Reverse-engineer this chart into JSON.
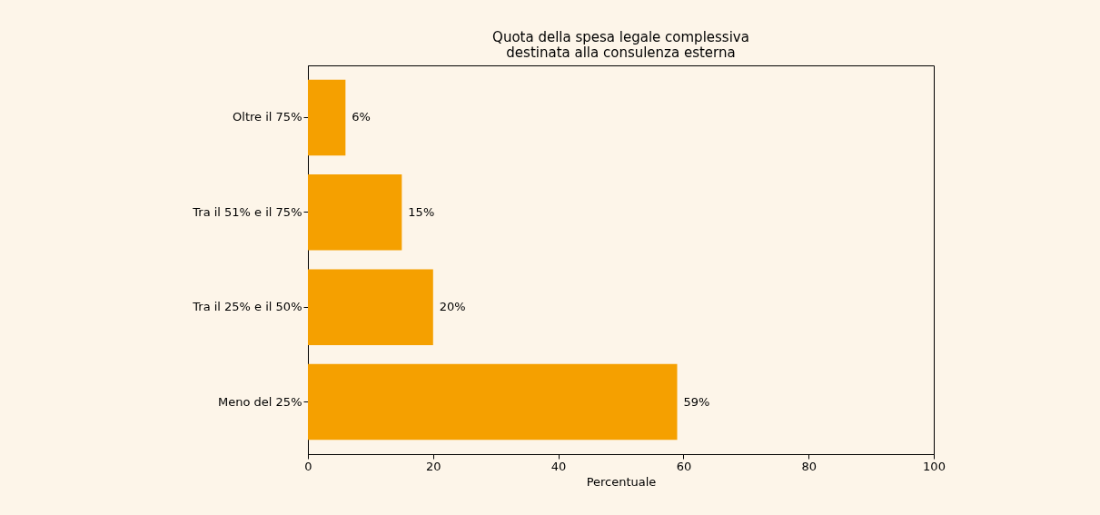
{
  "chart_data": {
    "type": "bar",
    "orientation": "horizontal",
    "title": "Quota della spesa legale complessiva\ndestinata alla consulenza esterna",
    "xlabel": "Percentuale",
    "categories": [
      "Oltre il 75%",
      "Tra il 51% e il 75%",
      "Tra il 25% e il 50%",
      "Meno del 25%"
    ],
    "values": [
      6,
      15,
      20,
      59
    ],
    "value_labels": [
      "6%",
      "15%",
      "20%",
      "59%"
    ],
    "color": "#f5a000",
    "xlim": [
      0,
      100
    ],
    "xticks": [
      0,
      20,
      40,
      60,
      80,
      100
    ],
    "grid": false
  }
}
